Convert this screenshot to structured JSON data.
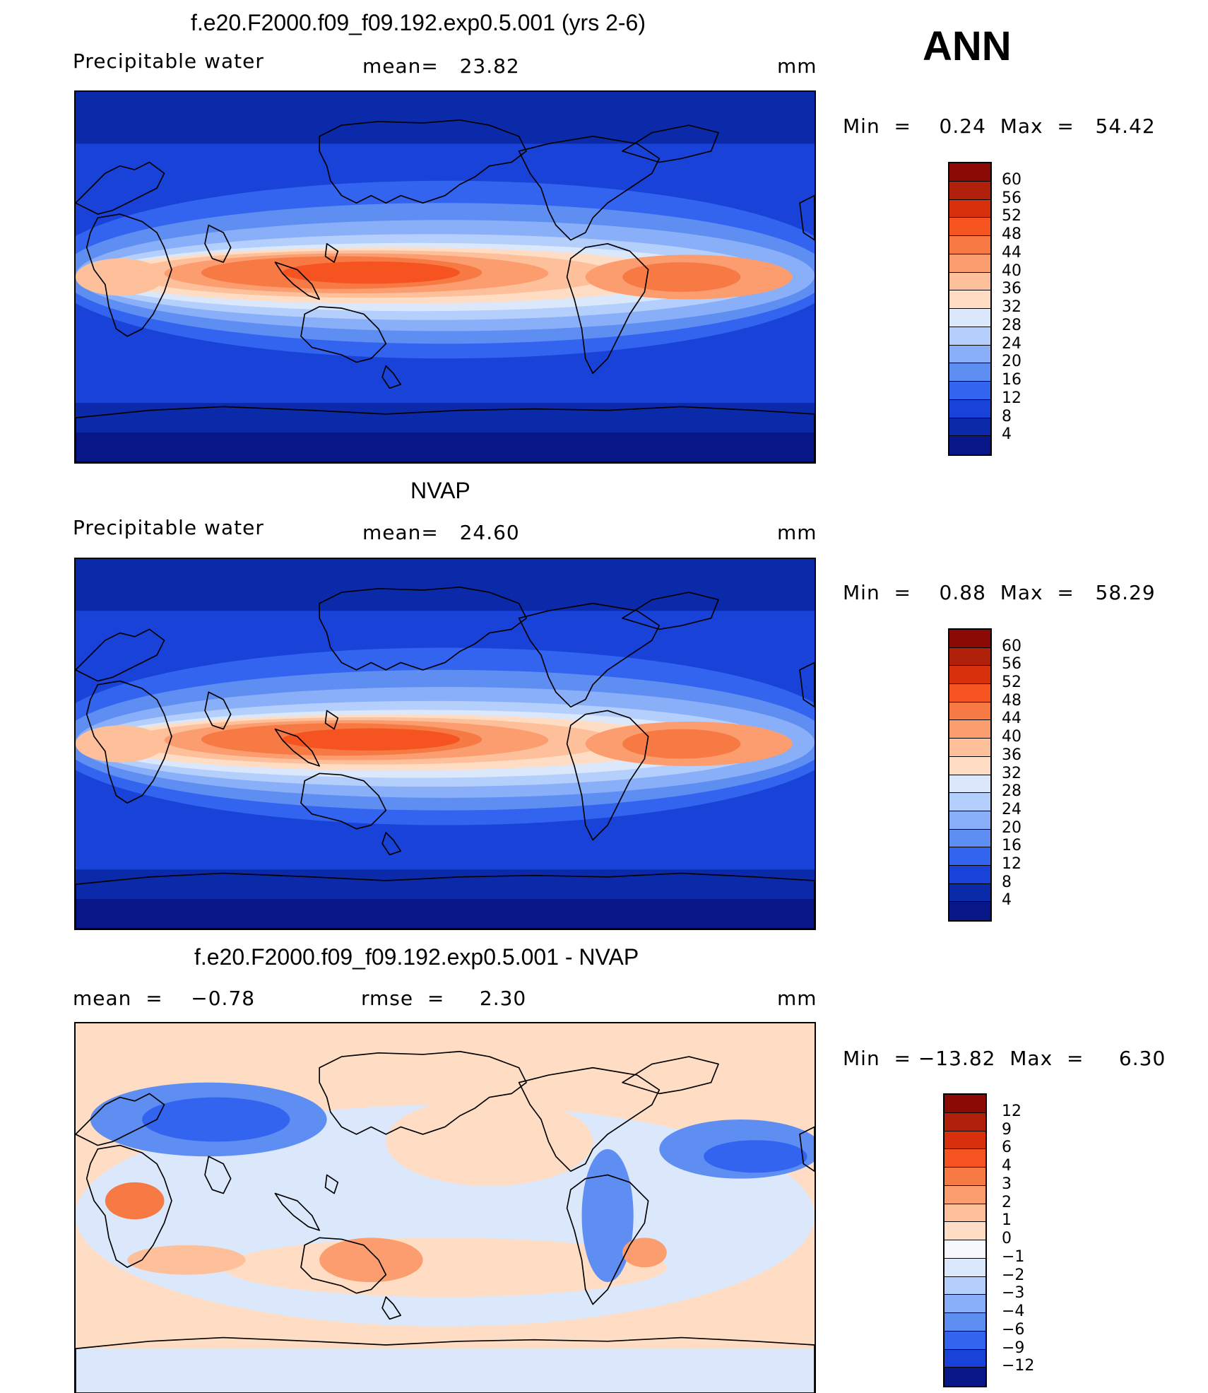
{
  "header": {
    "label": "ANN"
  },
  "panels": [
    {
      "title": "f.e20.F2000.f09_f09.192.exp0.5.001 (yrs 2-6)",
      "left_text": "Precipitable water",
      "mid_text": "mean=   23.82",
      "unit": "mm",
      "minmax": "Min  =    0.24  Max  =   54.42",
      "colorbar": {
        "labels": [
          "60",
          "56",
          "52",
          "48",
          "44",
          "40",
          "36",
          "32",
          "28",
          "24",
          "20",
          "16",
          "12",
          "8",
          "4"
        ],
        "colors": [
          "#8b0a05",
          "#b0200a",
          "#d8300c",
          "#f5531f",
          "#f77a45",
          "#fb9d6f",
          "#fdc09b",
          "#feddc4",
          "#dbe8fb",
          "#b4cffb",
          "#89aff8",
          "#5f8ef2",
          "#3364f0",
          "#1842d8",
          "#0a2aaa",
          "#071787"
        ]
      },
      "map_kind": "pw"
    },
    {
      "title": "NVAP",
      "left_text": "Precipitable water",
      "mid_text": "mean=   24.60",
      "unit": "mm",
      "minmax": "Min  =    0.88  Max  =   58.29",
      "colorbar": {
        "labels": [
          "60",
          "56",
          "52",
          "48",
          "44",
          "40",
          "36",
          "32",
          "28",
          "24",
          "20",
          "16",
          "12",
          "8",
          "4"
        ],
        "colors": [
          "#8b0a05",
          "#b0200a",
          "#d8300c",
          "#f5531f",
          "#f77a45",
          "#fb9d6f",
          "#fdc09b",
          "#feddc4",
          "#dbe8fb",
          "#b4cffb",
          "#89aff8",
          "#5f8ef2",
          "#3364f0",
          "#1842d8",
          "#0a2aaa",
          "#071787"
        ]
      },
      "map_kind": "pw"
    },
    {
      "title": "f.e20.F2000.f09_f09.192.exp0.5.001 - NVAP",
      "left_text": "mean  =    −0.78",
      "mid_text": "rmse  =     2.30",
      "unit": "mm",
      "minmax": "Min  = −13.82  Max  =     6.30",
      "colorbar": {
        "labels": [
          "12",
          "9",
          "6",
          "4",
          "3",
          "2",
          "1",
          "0",
          "−1",
          "−2",
          "−3",
          "−4",
          "−6",
          "−9",
          "−12"
        ],
        "colors": [
          "#8b0a05",
          "#b0200a",
          "#d8300c",
          "#f5531f",
          "#f77a45",
          "#fb9d6f",
          "#fdc09b",
          "#feddc4",
          "#f6f8fd",
          "#dbe8fb",
          "#b4cffb",
          "#89aff8",
          "#5f8ef2",
          "#3364f0",
          "#1842d8",
          "#071787"
        ]
      },
      "map_kind": "diff"
    }
  ]
}
